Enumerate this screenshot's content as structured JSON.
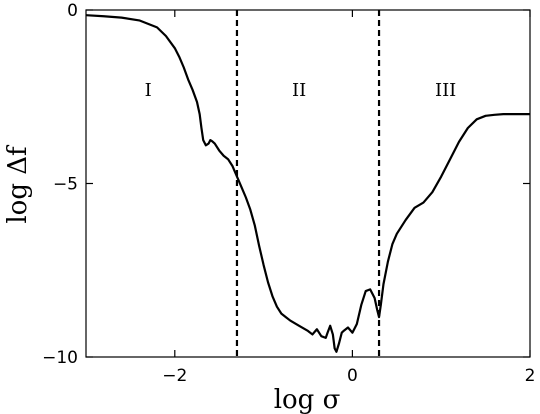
{
  "chart_data": {
    "type": "line",
    "title": "",
    "xlabel": "log σ",
    "ylabel": "log Δf",
    "xlim": [
      -3,
      2
    ],
    "ylim": [
      -10,
      0
    ],
    "xticks": [
      -2,
      0,
      2
    ],
    "yticks": [
      0,
      -5,
      -10
    ],
    "xtick_labels": [
      "−2",
      "0",
      "2"
    ],
    "ytick_labels": [
      "0",
      "−5",
      "−10"
    ],
    "grid": false,
    "series": [
      {
        "x": [
          -3.0,
          -2.8,
          -2.6,
          -2.4,
          -2.2,
          -2.1,
          -2.0,
          -1.95,
          -1.9,
          -1.85,
          -1.8,
          -1.75,
          -1.72,
          -1.7,
          -1.68,
          -1.65,
          -1.62,
          -1.6,
          -1.58,
          -1.55,
          -1.5,
          -1.45,
          -1.4,
          -1.35,
          -1.3,
          -1.25,
          -1.2,
          -1.15,
          -1.1,
          -1.05,
          -1.0,
          -0.95,
          -0.9,
          -0.85,
          -0.8,
          -0.75,
          -0.7,
          -0.6,
          -0.5,
          -0.45,
          -0.4,
          -0.35,
          -0.3,
          -0.28,
          -0.25,
          -0.22,
          -0.2,
          -0.18,
          -0.15,
          -0.12,
          -0.1,
          -0.05,
          0.0,
          0.05,
          0.1,
          0.15,
          0.2,
          0.25,
          0.28,
          0.3,
          0.32,
          0.35,
          0.4,
          0.45,
          0.5,
          0.6,
          0.7,
          0.8,
          0.9,
          1.0,
          1.1,
          1.2,
          1.3,
          1.4,
          1.5,
          1.6,
          1.7,
          1.8,
          1.9,
          2.0
        ],
        "y": [
          -0.15,
          -0.18,
          -0.22,
          -0.3,
          -0.5,
          -0.75,
          -1.1,
          -1.35,
          -1.65,
          -2.0,
          -2.3,
          -2.65,
          -3.0,
          -3.4,
          -3.75,
          -3.9,
          -3.85,
          -3.75,
          -3.78,
          -3.85,
          -4.05,
          -4.2,
          -4.3,
          -4.5,
          -4.8,
          -5.1,
          -5.4,
          -5.75,
          -6.2,
          -6.8,
          -7.35,
          -7.85,
          -8.25,
          -8.55,
          -8.75,
          -8.85,
          -8.95,
          -9.1,
          -9.25,
          -9.35,
          -9.2,
          -9.4,
          -9.45,
          -9.3,
          -9.1,
          -9.35,
          -9.75,
          -9.85,
          -9.6,
          -9.3,
          -9.25,
          -9.15,
          -9.3,
          -9.05,
          -8.5,
          -8.1,
          -8.05,
          -8.3,
          -8.65,
          -8.85,
          -8.5,
          -7.9,
          -7.25,
          -6.75,
          -6.45,
          -6.05,
          -5.7,
          -5.55,
          -5.25,
          -4.8,
          -4.3,
          -3.8,
          -3.4,
          -3.15,
          -3.05,
          -3.02,
          -3.0,
          -3.0,
          -3.0,
          -3.0
        ]
      }
    ],
    "vlines": [
      -1.3,
      0.3
    ],
    "annotations": [
      {
        "text": "I",
        "x": -2.3,
        "y": -2.3
      },
      {
        "text": "II",
        "x": -0.6,
        "y": -2.3
      },
      {
        "text": "III",
        "x": 1.05,
        "y": -2.3
      }
    ]
  }
}
